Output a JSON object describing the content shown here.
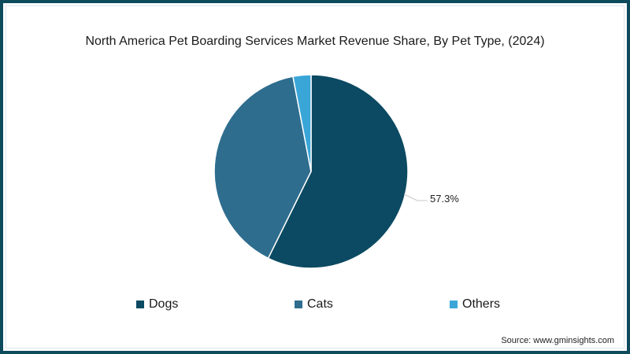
{
  "chart_data": {
    "type": "pie",
    "title": "North America Pet Boarding Services Market Revenue Share, By Pet Type, (2024)",
    "categories": [
      "Dogs",
      "Cats",
      "Others"
    ],
    "values": [
      57.3,
      39.7,
      3.0
    ],
    "colors": [
      "#0b4a62",
      "#2e6d8e",
      "#3aa6d8"
    ],
    "data_labels": [
      {
        "category": "Dogs",
        "text": "57.3%"
      }
    ],
    "legend_position": "bottom",
    "start_angle": "12 o'clock, clockwise"
  },
  "title": "North America Pet Boarding Services Market Revenue Share, By Pet Type, (2024)",
  "data_label": "57.3%",
  "legend": [
    {
      "label": "Dogs",
      "color": "#0b4a62"
    },
    {
      "label": "Cats",
      "color": "#2e6d8e"
    },
    {
      "label": "Others",
      "color": "#3aa6d8"
    }
  ],
  "source": "Source: www.gminsights.com"
}
